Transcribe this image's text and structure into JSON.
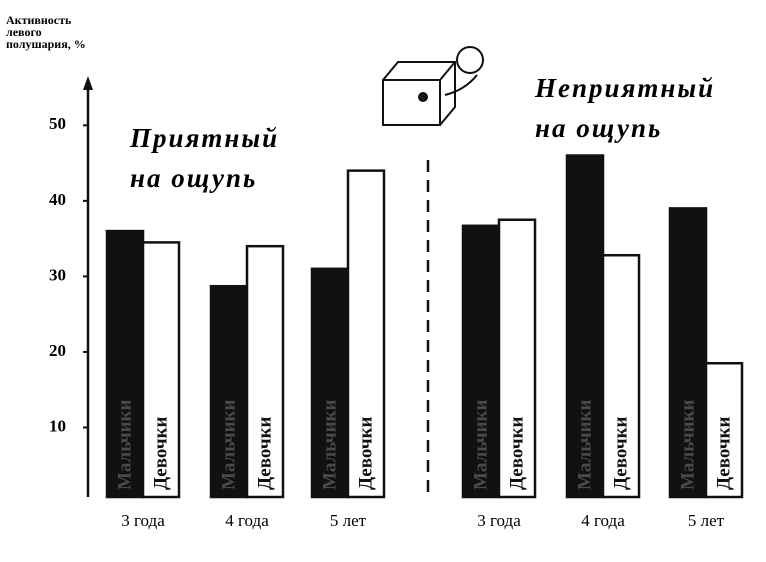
{
  "chart_data": {
    "type": "bar",
    "y_label": "Активность левого полушария, %",
    "annotations": [
      "Приятный на ощупь",
      "Неприятный на ощупь"
    ],
    "categories": [
      "3 года",
      "4 года",
      "5 лет",
      "3 года",
      "4 года",
      "5 лет"
    ],
    "series": [
      {
        "name": "Мальчики",
        "color": "#111111",
        "values": [
          36,
          28.7,
          31,
          36.7,
          46,
          39
        ]
      },
      {
        "name": "Девочки",
        "color": "#ffffff",
        "values": [
          34.5,
          34,
          44,
          37.5,
          32.8,
          18.5
        ]
      }
    ],
    "ylim": [
      0,
      56
    ],
    "yticks": [
      10,
      20,
      30,
      40,
      50
    ]
  }
}
